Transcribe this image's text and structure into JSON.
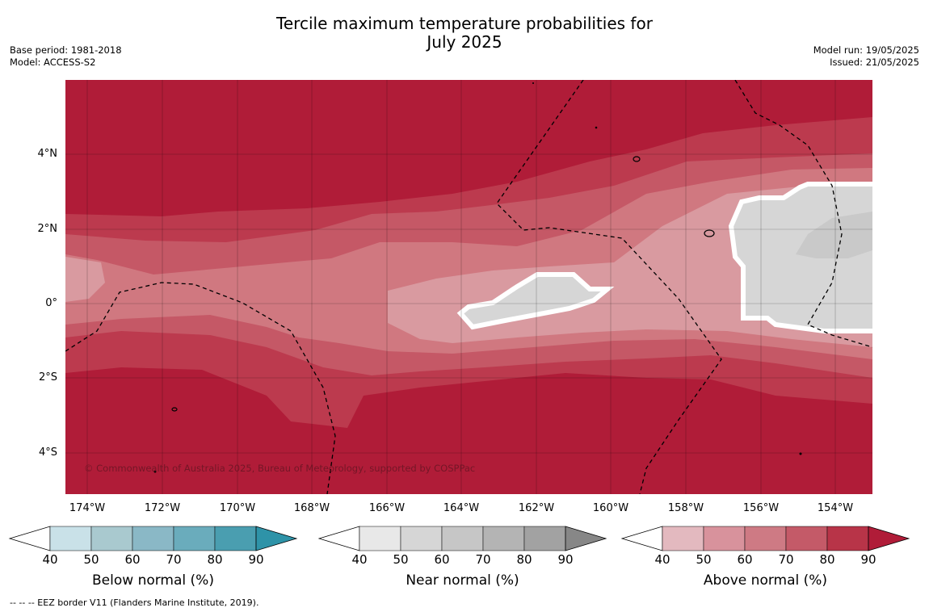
{
  "title_line1": "Tercile maximum temperature probabilities for",
  "title_line2": "July 2025",
  "meta_left": {
    "base_period": "Base period: 1981-2018",
    "model": "Model: ACCESS-S2"
  },
  "meta_right": {
    "model_run": "Model run: 19/05/2025",
    "issued": "Issued: 21/05/2025"
  },
  "copyright": "© Commonwealth of Australia 2025, Bureau of Meteorology, supported by COSPPac",
  "footnote": "--  --  -- EEZ border V11 (Flanders Marine Institute, 2019).",
  "lon_labels": [
    "174°W",
    "172°W",
    "170°W",
    "168°W",
    "166°W",
    "164°W",
    "162°W",
    "160°W",
    "158°W",
    "156°W",
    "154°W"
  ],
  "lat_labels": [
    "4°N",
    "2°N",
    "0°",
    "2°S",
    "4°S"
  ],
  "colorbars": [
    {
      "title": "Below normal (%)",
      "ticks": [
        "40",
        "50",
        "60",
        "70",
        "80",
        "90"
      ],
      "colors": [
        "#ffffff",
        "#c9e1e8",
        "#a9c9cf",
        "#8ab8c6",
        "#6aacbc",
        "#4a9eb0",
        "#2e93a8"
      ]
    },
    {
      "title": "Near normal (%)",
      "ticks": [
        "40",
        "50",
        "60",
        "70",
        "80",
        "90"
      ],
      "colors": [
        "#ffffff",
        "#e8e8e8",
        "#d6d6d6",
        "#c6c6c6",
        "#b4b4b4",
        "#a2a2a2",
        "#878787"
      ]
    },
    {
      "title": "Above normal (%)",
      "ticks": [
        "40",
        "50",
        "60",
        "70",
        "80",
        "90"
      ],
      "colors": [
        "#ffffff",
        "#e3b9bf",
        "#d8929c",
        "#ce7a84",
        "#c45a68",
        "#b83448",
        "#b01c38"
      ]
    }
  ],
  "map_colors": {
    "above_90": "#b01c38",
    "above_80": "#bc3a4e",
    "above_70": "#c55866",
    "above_60": "#d07880",
    "above_50": "#d99aa0",
    "near_50": "#d6d6d6",
    "near_60": "#c9c9c9"
  }
}
